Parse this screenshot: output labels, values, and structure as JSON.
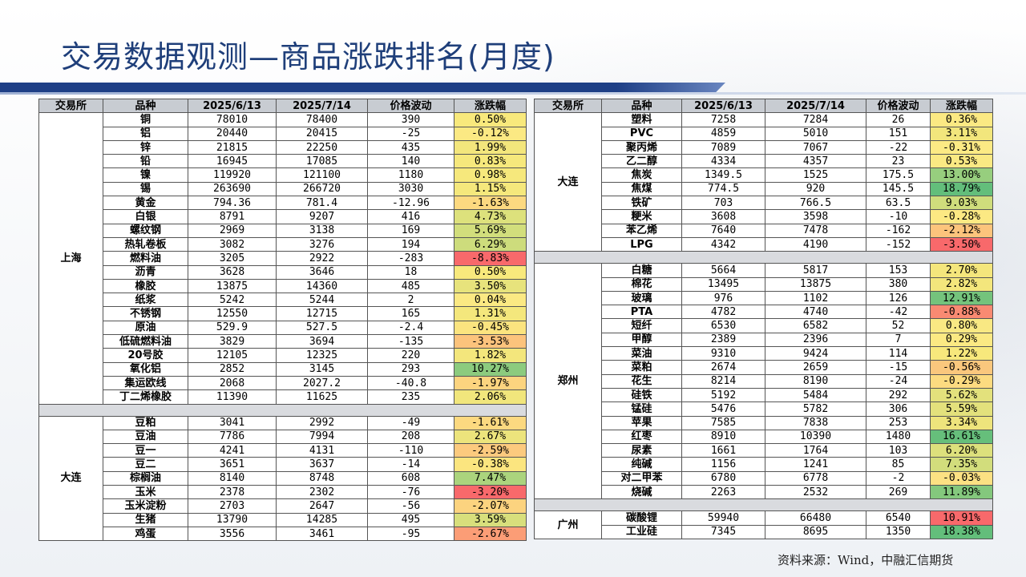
{
  "title": "交易数据观测—商品涨跌排名(月度)",
  "footnote": "资料来源：Wind，中融汇信期货",
  "headers": [
    "交易所",
    "品种",
    "2025/6/13",
    "2025/7/14",
    "价格波动",
    "涨跌幅"
  ],
  "left_groups": [
    {
      "exchange": "上海",
      "rows": [
        {
          "name": "铜",
          "p1": "78010",
          "p2": "78400",
          "chg": "390",
          "pct": "0.50%",
          "color": "#f8e97c"
        },
        {
          "name": "铝",
          "p1": "20440",
          "p2": "20415",
          "chg": "-25",
          "pct": "-0.12%",
          "color": "#fbe983"
        },
        {
          "name": "锌",
          "p1": "21815",
          "p2": "22250",
          "chg": "435",
          "pct": "1.99%",
          "color": "#f3e67c"
        },
        {
          "name": "铅",
          "p1": "16945",
          "p2": "17085",
          "chg": "140",
          "pct": "0.83%",
          "color": "#f6e87c"
        },
        {
          "name": "镍",
          "p1": "119920",
          "p2": "121100",
          "chg": "1180",
          "pct": "0.98%",
          "color": "#f6e87c"
        },
        {
          "name": "锡",
          "p1": "263690",
          "p2": "266720",
          "chg": "3030",
          "pct": "1.15%",
          "color": "#f5e87c"
        },
        {
          "name": "黄金",
          "p1": "794.36",
          "p2": "781.4",
          "chg": "-12.96",
          "pct": "-1.63%",
          "color": "#fcd980"
        },
        {
          "name": "白银",
          "p1": "8791",
          "p2": "9207",
          "chg": "416",
          "pct": "4.73%",
          "color": "#dde17c"
        },
        {
          "name": "螺纹钢",
          "p1": "2969",
          "p2": "3138",
          "chg": "169",
          "pct": "5.69%",
          "color": "#d2de7c"
        },
        {
          "name": "热轧卷板",
          "p1": "3082",
          "p2": "3276",
          "chg": "194",
          "pct": "6.29%",
          "color": "#cddc7c"
        },
        {
          "name": "燃料油",
          "p1": "3205",
          "p2": "2922",
          "chg": "-283",
          "pct": "-8.83%",
          "color": "#f8696b"
        },
        {
          "name": "沥青",
          "p1": "3628",
          "p2": "3646",
          "chg": "18",
          "pct": "0.50%",
          "color": "#f8e97c"
        },
        {
          "name": "橡胶",
          "p1": "13875",
          "p2": "14360",
          "chg": "485",
          "pct": "3.50%",
          "color": "#e7e37c"
        },
        {
          "name": "纸浆",
          "p1": "5242",
          "p2": "5244",
          "chg": "2",
          "pct": "0.04%",
          "color": "#fbe983"
        },
        {
          "name": "不锈钢",
          "p1": "12550",
          "p2": "12715",
          "chg": "165",
          "pct": "1.31%",
          "color": "#f4e77c"
        },
        {
          "name": "原油",
          "p1": "529.9",
          "p2": "527.5",
          "chg": "-2.4",
          "pct": "-0.45%",
          "color": "#fbe47f"
        },
        {
          "name": "低硫燃料油",
          "p1": "3829",
          "p2": "3694",
          "chg": "-135",
          "pct": "-3.53%",
          "color": "#fcc37c"
        },
        {
          "name": "20号胶",
          "p1": "12105",
          "p2": "12325",
          "chg": "220",
          "pct": "1.82%",
          "color": "#f3e67c"
        },
        {
          "name": "氧化铝",
          "p1": "2852",
          "p2": "3145",
          "chg": "293",
          "pct": "10.27%",
          "color": "#8ccb7e"
        },
        {
          "name": "集运欧线",
          "p1": "2068",
          "p2": "2027.2",
          "chg": "-40.8",
          "pct": "-1.97%",
          "color": "#fcd47f"
        },
        {
          "name": "丁二烯橡胶",
          "p1": "11390",
          "p2": "11625",
          "chg": "235",
          "pct": "2.06%",
          "color": "#f1e67c"
        }
      ]
    },
    {
      "exchange": "大连",
      "rows": [
        {
          "name": "豆粕",
          "p1": "3041",
          "p2": "2992",
          "chg": "-49",
          "pct": "-1.61%",
          "color": "#fcd980"
        },
        {
          "name": "豆油",
          "p1": "7786",
          "p2": "7994",
          "chg": "208",
          "pct": "2.67%",
          "color": "#ece47c"
        },
        {
          "name": "豆一",
          "p1": "4241",
          "p2": "4131",
          "chg": "-110",
          "pct": "-2.59%",
          "color": "#fcca7e"
        },
        {
          "name": "豆二",
          "p1": "3651",
          "p2": "3637",
          "chg": "-14",
          "pct": "-0.38%",
          "color": "#fbe57f"
        },
        {
          "name": "棕榈油",
          "p1": "8140",
          "p2": "8748",
          "chg": "608",
          "pct": "7.47%",
          "color": "#abd47d"
        },
        {
          "name": "玉米",
          "p1": "2378",
          "p2": "2302",
          "chg": "-76",
          "pct": "-3.20%",
          "color": "#f8696b"
        },
        {
          "name": "玉米淀粉",
          "p1": "2703",
          "p2": "2647",
          "chg": "-56",
          "pct": "-2.07%",
          "color": "#fcd37f"
        },
        {
          "name": "生猪",
          "p1": "13790",
          "p2": "14285",
          "chg": "495",
          "pct": "3.59%",
          "color": "#d8df7c"
        },
        {
          "name": "鸡蛋",
          "p1": "3556",
          "p2": "3461",
          "chg": "-95",
          "pct": "-2.67%",
          "color": "#fb9d76"
        }
      ]
    }
  ],
  "right_groups": [
    {
      "exchange": "大连",
      "rows": [
        {
          "name": "塑料",
          "p1": "7258",
          "p2": "7284",
          "chg": "26",
          "pct": "0.36%",
          "color": "#fbe983"
        },
        {
          "name": "PVC",
          "p1": "4859",
          "p2": "5010",
          "chg": "151",
          "pct": "3.11%",
          "color": "#f2e67c"
        },
        {
          "name": "聚丙烯",
          "p1": "7089",
          "p2": "7067",
          "chg": "-22",
          "pct": "-0.31%",
          "color": "#fcea84"
        },
        {
          "name": "乙二醇",
          "p1": "4334",
          "p2": "4357",
          "chg": "23",
          "pct": "0.53%",
          "color": "#fae983"
        },
        {
          "name": "焦炭",
          "p1": "1349.5",
          "p2": "1525",
          "chg": "175.5",
          "pct": "13.00%",
          "color": "#97ce7e"
        },
        {
          "name": "焦煤",
          "p1": "774.5",
          "p2": "920",
          "chg": "145.5",
          "pct": "18.79%",
          "color": "#63be7b"
        },
        {
          "name": "铁矿",
          "p1": "703",
          "p2": "766.5",
          "chg": "63.5",
          "pct": "9.03%",
          "color": "#cfdd7c"
        },
        {
          "name": "粳米",
          "p1": "3608",
          "p2": "3598",
          "chg": "-10",
          "pct": "-0.28%",
          "color": "#fce983"
        },
        {
          "name": "苯乙烯",
          "p1": "7640",
          "p2": "7478",
          "chg": "-162",
          "pct": "-2.12%",
          "color": "#fcc47c"
        },
        {
          "name": "LPG",
          "p1": "4342",
          "p2": "4190",
          "chg": "-152",
          "pct": "-3.50%",
          "color": "#f8696b"
        }
      ]
    },
    {
      "exchange": "郑州",
      "rows": [
        {
          "name": "白糖",
          "p1": "5664",
          "p2": "5817",
          "chg": "153",
          "pct": "2.70%",
          "color": "#f4e67c"
        },
        {
          "name": "棉花",
          "p1": "13495",
          "p2": "13875",
          "chg": "380",
          "pct": "2.82%",
          "color": "#f3e67c"
        },
        {
          "name": "玻璃",
          "p1": "976",
          "p2": "1102",
          "chg": "126",
          "pct": "12.91%",
          "color": "#74c37c"
        },
        {
          "name": "PTA",
          "p1": "4782",
          "p2": "4740",
          "chg": "-42",
          "pct": "-0.88%",
          "color": "#f98a72"
        },
        {
          "name": "短纤",
          "p1": "6530",
          "p2": "6582",
          "chg": "52",
          "pct": "0.80%",
          "color": "#f9e883"
        },
        {
          "name": "甲醇",
          "p1": "2389",
          "p2": "2396",
          "chg": "7",
          "pct": "0.29%",
          "color": "#fbe983"
        },
        {
          "name": "菜油",
          "p1": "9310",
          "p2": "9424",
          "chg": "114",
          "pct": "1.22%",
          "color": "#f7e87c"
        },
        {
          "name": "菜粕",
          "p1": "2674",
          "p2": "2659",
          "chg": "-15",
          "pct": "-0.56%",
          "color": "#fac77d"
        },
        {
          "name": "花生",
          "p1": "8214",
          "p2": "8190",
          "chg": "-24",
          "pct": "-0.29%",
          "color": "#fcdb80"
        },
        {
          "name": "硅铁",
          "p1": "5192",
          "p2": "5484",
          "chg": "292",
          "pct": "5.62%",
          "color": "#e3e17c"
        },
        {
          "name": "锰硅",
          "p1": "5476",
          "p2": "5782",
          "chg": "306",
          "pct": "5.59%",
          "color": "#e3e17c"
        },
        {
          "name": "苹果",
          "p1": "7585",
          "p2": "7838",
          "chg": "253",
          "pct": "3.34%",
          "color": "#eee47c"
        },
        {
          "name": "红枣",
          "p1": "8910",
          "p2": "10390",
          "chg": "1480",
          "pct": "16.61%",
          "color": "#66bf7b"
        },
        {
          "name": "尿素",
          "p1": "1661",
          "p2": "1764",
          "chg": "103",
          "pct": "6.20%",
          "color": "#dde07c"
        },
        {
          "name": "纯碱",
          "p1": "1156",
          "p2": "1241",
          "chg": "85",
          "pct": "7.35%",
          "color": "#d2dd7c"
        },
        {
          "name": "对二甲苯",
          "p1": "6780",
          "p2": "6778",
          "chg": "-2",
          "pct": "-0.03%",
          "color": "#fce183"
        },
        {
          "name": "烧碱",
          "p1": "2263",
          "p2": "2532",
          "chg": "269",
          "pct": "11.89%",
          "color": "#84c87d"
        }
      ]
    },
    {
      "exchange": "广州",
      "rows": [
        {
          "name": "碳酸锂",
          "p1": "59940",
          "p2": "66480",
          "chg": "6540",
          "pct": "10.91%",
          "color": "#f8696b"
        },
        {
          "name": "工业硅",
          "p1": "7345",
          "p2": "8695",
          "chg": "1350",
          "pct": "18.38%",
          "color": "#63be7b"
        }
      ]
    }
  ]
}
